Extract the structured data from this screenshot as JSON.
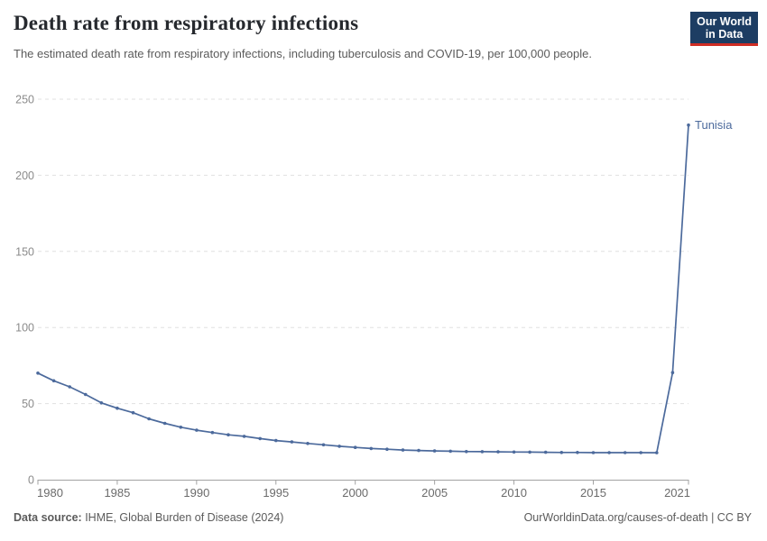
{
  "header": {
    "title": "Death rate from respiratory infections",
    "subtitle": "The estimated death rate from respiratory infections, including tuberculosis and COVID-19, per 100,000 people.",
    "logo": {
      "line1": "Our World",
      "line2": "in Data"
    }
  },
  "footer": {
    "data_source_label": "Data source:",
    "data_source_text": " IHME, Global Burden of Disease (2024)",
    "attribution": "OurWorldinData.org/causes-of-death | CC BY"
  },
  "colors": {
    "series": "#4c6a9c",
    "grid": "#e0e0e0",
    "axis": "#a2a2a2",
    "y_label": "#8b8b8b",
    "x_label": "#6b6b6b",
    "logo_bg": "#1d3d63",
    "logo_red": "#cf2d24",
    "title_text": "#26292e",
    "muted_text": "#5b5b5b"
  },
  "chart_data": {
    "type": "line",
    "title": "Death rate from respiratory infections",
    "subtitle": "The estimated death rate from respiratory infections, including tuberculosis and COVID-19, per 100,000 people.",
    "entity_label": "Tunisia",
    "xlabel": "",
    "ylabel": "",
    "xlim": [
      1980,
      2021
    ],
    "ylim": [
      0,
      250
    ],
    "x_ticks": [
      1980,
      1985,
      1990,
      1995,
      2000,
      2005,
      2010,
      2015,
      2021
    ],
    "y_ticks": [
      0,
      50,
      100,
      150,
      200,
      250
    ],
    "grid": "horizontal-dashed",
    "legend_position": "line-end-label",
    "series": [
      {
        "name": "Tunisia",
        "color": "#4c6a9c",
        "x": [
          1980,
          1981,
          1982,
          1983,
          1984,
          1985,
          1986,
          1987,
          1988,
          1989,
          1990,
          1991,
          1992,
          1993,
          1994,
          1995,
          1996,
          1997,
          1998,
          1999,
          2000,
          2001,
          2002,
          2003,
          2004,
          2005,
          2006,
          2007,
          2008,
          2009,
          2010,
          2011,
          2012,
          2013,
          2014,
          2015,
          2016,
          2017,
          2018,
          2019,
          2020,
          2021
        ],
        "values": [
          70,
          65,
          61,
          56,
          50.5,
          47,
          44,
          40,
          37,
          34.5,
          32.5,
          31,
          29.5,
          28.5,
          27,
          25.7,
          24.8,
          23.8,
          22.9,
          22,
          21.2,
          20.5,
          20,
          19.5,
          19.2,
          18.9,
          18.7,
          18.5,
          18.4,
          18.3,
          18.2,
          18.1,
          18,
          17.9,
          17.9,
          17.8,
          17.8,
          17.8,
          17.8,
          17.7,
          70.4,
          233
        ]
      }
    ]
  }
}
